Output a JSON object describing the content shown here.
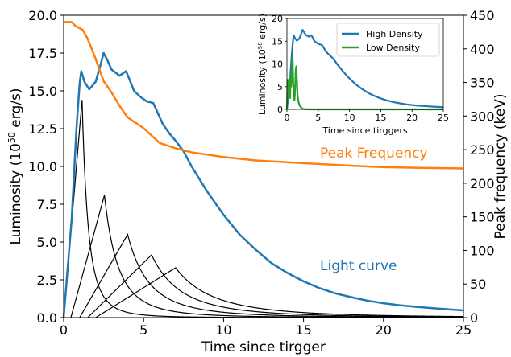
{
  "chart_data": [
    {
      "type": "line",
      "xlabel": "Time since tirgger",
      "ylabel": "Luminosity (10^50 erg/s)",
      "ylabel_parts": {
        "pre": "Luminosity (10",
        "sup": "50",
        "post": " erg/s)"
      },
      "ylabel_right": "Peak frequency (keV)",
      "xlim": [
        0,
        25
      ],
      "ylim": [
        0,
        20
      ],
      "ylim_right": [
        0,
        450
      ],
      "xticks": [
        "0",
        "5",
        "10",
        "15",
        "20",
        "25"
      ],
      "yticks": [
        "0.0",
        "2.5",
        "5.0",
        "7.5",
        "10.0",
        "12.5",
        "15.0",
        "17.5",
        "20.0"
      ],
      "yticks_right": [
        "0",
        "50",
        "100",
        "150",
        "200",
        "250",
        "300",
        "350",
        "400",
        "450"
      ],
      "grid": false,
      "annotations": [
        {
          "text": "Peak Frequency",
          "color": "#ff7f0e"
        },
        {
          "text": "Light curve",
          "color": "#1f77b4"
        }
      ],
      "series": [
        {
          "color": "#1f77b4",
          "axis": "left",
          "x": [
            0,
            0.5,
            0.8,
            1.0,
            1.1,
            1.3,
            1.6,
            2.0,
            2.3,
            2.5,
            2.7,
            3.0,
            3.5,
            3.9,
            4.1,
            4.4,
            4.8,
            5.2,
            5.6,
            5.9,
            6.2,
            6.6,
            7.0,
            7.5,
            8,
            9,
            10,
            11,
            12,
            13,
            14,
            15,
            16,
            17,
            18,
            19,
            20,
            21,
            22,
            23,
            24,
            25
          ],
          "y": [
            0,
            6.5,
            12.5,
            15.5,
            16.3,
            15.6,
            15.1,
            15.6,
            16.7,
            17.5,
            17.1,
            16.4,
            16.0,
            16.3,
            15.8,
            15.0,
            14.6,
            14.3,
            14.2,
            13.5,
            12.8,
            12.2,
            11.7,
            11.0,
            10.0,
            8.3,
            6.8,
            5.5,
            4.5,
            3.6,
            2.95,
            2.4,
            1.95,
            1.6,
            1.35,
            1.12,
            0.95,
            0.82,
            0.72,
            0.63,
            0.55,
            0.48
          ]
        },
        {
          "color": "#ff7f0e",
          "axis": "right",
          "x": [
            0,
            0.5,
            0.7,
            0.9,
            1.2,
            1.5,
            2.0,
            2.5,
            3.0,
            3.5,
            4.0,
            5.0,
            6.0,
            7.0,
            8.0,
            10,
            12,
            15,
            18,
            20,
            22,
            25
          ],
          "y": [
            440,
            440,
            435,
            432,
            428,
            415,
            385,
            352,
            335,
            315,
            298,
            282,
            260,
            252,
            246,
            239,
            234,
            230,
            226,
            224,
            223,
            222
          ]
        }
      ],
      "pulses": [
        {
          "t0": 0,
          "tp": 1.15,
          "peak": 14.4
        },
        {
          "t0": 0.45,
          "tp": 2.55,
          "peak": 8.1
        },
        {
          "t0": 1.0,
          "tp": 4.0,
          "peak": 5.5
        },
        {
          "t0": 1.5,
          "tp": 5.5,
          "peak": 4.15
        },
        {
          "t0": 2.0,
          "tp": 7.0,
          "peak": 3.3
        }
      ]
    },
    {
      "type": "line",
      "xlabel": "Time since tirggers",
      "ylabel": "Luminosity (10^50 erg/s)",
      "ylabel_parts": {
        "pre": "Luminosity (10",
        "sup": "50",
        "post": " erg/s)"
      },
      "xlim": [
        0,
        25
      ],
      "ylim": [
        0,
        20
      ],
      "xticks": [
        "0",
        "5",
        "10",
        "15",
        "20",
        "25"
      ],
      "yticks": [
        "0",
        "5",
        "10",
        "15",
        "20"
      ],
      "legend": "top-right",
      "series": [
        {
          "name": "High Density",
          "color": "#1f77b4",
          "x": [
            0,
            0.5,
            0.8,
            1.0,
            1.1,
            1.3,
            1.6,
            2.0,
            2.3,
            2.5,
            2.7,
            3.0,
            3.5,
            3.9,
            4.1,
            4.4,
            4.8,
            5.2,
            5.6,
            5.9,
            6.2,
            6.6,
            7.0,
            7.5,
            8,
            9,
            10,
            11,
            12,
            13,
            14,
            15,
            16,
            17,
            18,
            19,
            20,
            21,
            22,
            23,
            24,
            25
          ],
          "y": [
            0,
            6.5,
            12.5,
            15.5,
            16.3,
            15.6,
            15.1,
            15.6,
            16.7,
            17.5,
            17.1,
            16.4,
            16.0,
            16.3,
            15.8,
            15.0,
            14.6,
            14.3,
            14.2,
            13.5,
            12.8,
            12.2,
            11.7,
            11.0,
            10.0,
            8.3,
            6.8,
            5.5,
            4.5,
            3.6,
            2.95,
            2.4,
            1.95,
            1.6,
            1.35,
            1.12,
            0.95,
            0.82,
            0.72,
            0.63,
            0.55,
            0.48
          ]
        },
        {
          "name": "Low Density",
          "color": "#2ca02c",
          "x": [
            0,
            0.1,
            0.2,
            0.3,
            0.4,
            0.5,
            0.6,
            0.7,
            0.8,
            0.9,
            1.0,
            1.1,
            1.2,
            1.3,
            1.4,
            1.5,
            1.6,
            1.7,
            1.8,
            1.9,
            2.0,
            2.1,
            2.2,
            2.3,
            2.4,
            2.5,
            2.7,
            3.0,
            3.5,
            4,
            5,
            25
          ],
          "y": [
            0,
            6.5,
            2.0,
            5.5,
            7.0,
            2.5,
            7.5,
            5.0,
            9.5,
            11.5,
            6.0,
            3.5,
            2.0,
            4.0,
            8.5,
            9.5,
            6.0,
            3.0,
            2.0,
            1.4,
            1.0,
            0.7,
            0.5,
            0.35,
            0.25,
            0.15,
            0.08,
            0.03,
            0.01,
            0.0,
            0.0,
            0.0
          ]
        }
      ]
    }
  ]
}
